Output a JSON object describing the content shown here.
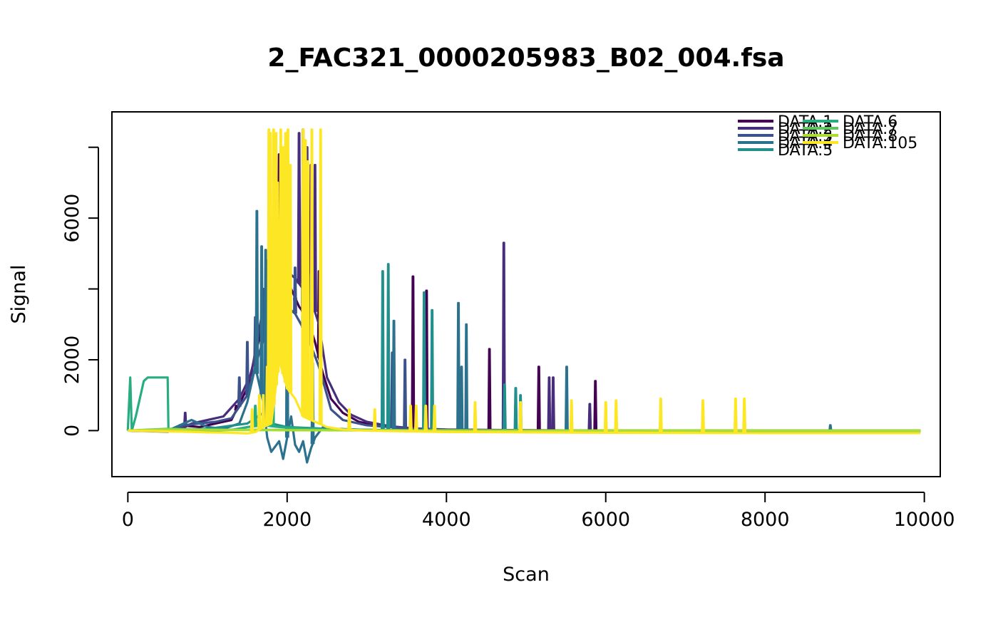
{
  "chart_data": {
    "type": "line",
    "title": "2_FAC321_0000205983_B02_004.fsa",
    "xlabel": "Scan",
    "ylabel": "Signal",
    "xlim": [
      -200,
      10200
    ],
    "ylim": [
      -1300,
      9000
    ],
    "x_ticks": [
      0,
      2000,
      4000,
      6000,
      8000,
      10000
    ],
    "x_tick_labels": [
      "0",
      "2000",
      "4000",
      "6000",
      "8000",
      "10000"
    ],
    "y_ticks": [
      0,
      2000,
      4000,
      6000,
      8000
    ],
    "y_tick_labels": [
      "0",
      "2000",
      "",
      "6000",
      ""
    ],
    "legend_position": "top-right",
    "grid": false,
    "series": [
      {
        "name": "DATA.1",
        "color": "#440154",
        "peaks": [
          [
            1360,
            700
          ],
          [
            1780,
            4000
          ],
          [
            1900,
            7800
          ],
          [
            2000,
            6000
          ],
          [
            2100,
            3500
          ],
          [
            2200,
            8500
          ],
          [
            2300,
            7500
          ],
          [
            2400,
            4500
          ],
          [
            3580,
            4350
          ],
          [
            3750,
            3950
          ],
          [
            4540,
            2300
          ],
          [
            5160,
            1800
          ],
          [
            5870,
            1400
          ]
        ],
        "points": [
          [
            0,
            0
          ],
          [
            550,
            -20
          ],
          [
            650,
            150
          ],
          [
            900,
            100
          ],
          [
            1100,
            200
          ],
          [
            1300,
            300
          ],
          [
            1500,
            1200
          ],
          [
            1650,
            2600
          ],
          [
            1750,
            3800
          ],
          [
            1850,
            4200
          ],
          [
            1950,
            4400
          ],
          [
            2050,
            4000
          ],
          [
            2150,
            3500
          ],
          [
            2250,
            3200
          ],
          [
            2350,
            2500
          ],
          [
            2450,
            1600
          ],
          [
            2550,
            900
          ],
          [
            2700,
            500
          ],
          [
            2900,
            250
          ],
          [
            3100,
            150
          ],
          [
            3400,
            80
          ],
          [
            3700,
            40
          ],
          [
            4000,
            20
          ],
          [
            5000,
            10
          ],
          [
            6000,
            0
          ],
          [
            9950,
            0
          ]
        ]
      },
      {
        "name": "DATA.2",
        "color": "#472D7B",
        "peaks": [
          [
            720,
            500
          ],
          [
            1550,
            1600
          ],
          [
            1750,
            4800
          ],
          [
            1850,
            7800
          ],
          [
            2150,
            8400
          ],
          [
            2250,
            8000
          ],
          [
            2350,
            7500
          ],
          [
            4720,
            5300
          ],
          [
            5290,
            1500
          ],
          [
            5340,
            1500
          ],
          [
            5800,
            750
          ]
        ],
        "points": [
          [
            0,
            0
          ],
          [
            500,
            -30
          ],
          [
            720,
            100
          ],
          [
            800,
            200
          ],
          [
            1000,
            300
          ],
          [
            1200,
            400
          ],
          [
            1400,
            900
          ],
          [
            1550,
            1600
          ],
          [
            1700,
            3500
          ],
          [
            1800,
            4600
          ],
          [
            1900,
            4700
          ],
          [
            2000,
            4500
          ],
          [
            2100,
            4300
          ],
          [
            2200,
            4000
          ],
          [
            2300,
            3700
          ],
          [
            2400,
            3000
          ],
          [
            2500,
            1500
          ],
          [
            2650,
            800
          ],
          [
            2800,
            450
          ],
          [
            3000,
            250
          ],
          [
            3300,
            120
          ],
          [
            3600,
            60
          ],
          [
            4000,
            30
          ],
          [
            5000,
            10
          ],
          [
            6000,
            0
          ],
          [
            9950,
            0
          ]
        ]
      },
      {
        "name": "DATA.3",
        "color": "#3B528B",
        "peaks": [
          [
            1400,
            1500
          ],
          [
            1500,
            2500
          ],
          [
            1600,
            3200
          ],
          [
            1700,
            4000
          ],
          [
            1800,
            4800
          ],
          [
            1900,
            5000
          ],
          [
            2000,
            4800
          ],
          [
            2100,
            4600
          ],
          [
            2200,
            4200
          ],
          [
            2300,
            4400
          ],
          [
            3320,
            2200
          ],
          [
            3480,
            2000
          ]
        ],
        "points": [
          [
            0,
            0
          ],
          [
            500,
            -10
          ],
          [
            700,
            150
          ],
          [
            900,
            200
          ],
          [
            1100,
            250
          ],
          [
            1300,
            350
          ],
          [
            1500,
            1000
          ],
          [
            1650,
            2200
          ],
          [
            1800,
            3200
          ],
          [
            1950,
            3600
          ],
          [
            2100,
            3300
          ],
          [
            2250,
            2700
          ],
          [
            2400,
            1800
          ],
          [
            2550,
            600
          ],
          [
            2700,
            300
          ],
          [
            3000,
            150
          ],
          [
            3500,
            60
          ],
          [
            4000,
            20
          ],
          [
            5000,
            5
          ],
          [
            6000,
            -20
          ],
          [
            9950,
            -20
          ]
        ]
      },
      {
        "name": "DATA.4",
        "color": "#2C728E",
        "peaks": [
          [
            1620,
            6200
          ],
          [
            1680,
            5200
          ],
          [
            1730,
            5100
          ],
          [
            2000,
            4500
          ],
          [
            2320,
            1900
          ],
          [
            3340,
            3100
          ],
          [
            4150,
            3600
          ],
          [
            4190,
            1800
          ],
          [
            4250,
            3000
          ],
          [
            5510,
            1800
          ],
          [
            8820,
            150
          ]
        ],
        "points": [
          [
            0,
            0
          ],
          [
            500,
            0
          ],
          [
            800,
            300
          ],
          [
            1000,
            100
          ],
          [
            1200,
            50
          ],
          [
            1400,
            200
          ],
          [
            1500,
            800
          ],
          [
            1600,
            1800
          ],
          [
            1700,
            800
          ],
          [
            1750,
            -200
          ],
          [
            1800,
            -600
          ],
          [
            1900,
            -300
          ],
          [
            1950,
            -800
          ],
          [
            2000,
            -200
          ],
          [
            2050,
            400
          ],
          [
            2100,
            -400
          ],
          [
            2150,
            -600
          ],
          [
            2200,
            -300
          ],
          [
            2250,
            -900
          ],
          [
            2300,
            -500
          ],
          [
            2350,
            -200
          ],
          [
            2450,
            100
          ],
          [
            2600,
            50
          ],
          [
            3000,
            20
          ],
          [
            4000,
            -30
          ],
          [
            6000,
            -30
          ],
          [
            8800,
            -40
          ],
          [
            9950,
            -40
          ]
        ]
      },
      {
        "name": "DATA.5",
        "color": "#21908C",
        "peaks": [
          [
            3200,
            4500
          ],
          [
            3270,
            4700
          ],
          [
            3720,
            3900
          ],
          [
            3820,
            3400
          ],
          [
            4730,
            1300
          ],
          [
            4870,
            1200
          ],
          [
            4930,
            1000
          ]
        ],
        "points": [
          [
            0,
            0
          ],
          [
            500,
            0
          ],
          [
            1000,
            50
          ],
          [
            1500,
            200
          ],
          [
            1700,
            500
          ],
          [
            1800,
            200
          ],
          [
            2000,
            100
          ],
          [
            2500,
            50
          ],
          [
            3000,
            20
          ],
          [
            4000,
            -10
          ],
          [
            6000,
            -40
          ],
          [
            8000,
            -50
          ],
          [
            9950,
            -50
          ]
        ]
      },
      {
        "name": "DATA.6",
        "color": "#27AD81",
        "peaks": [
          [
            1600,
            700
          ],
          [
            1790,
            5800
          ],
          [
            1820,
            5400
          ]
        ],
        "points": [
          [
            0,
            0
          ],
          [
            30,
            1500
          ],
          [
            50,
            0
          ],
          [
            100,
            400
          ],
          [
            200,
            1400
          ],
          [
            250,
            1500
          ],
          [
            500,
            1500
          ],
          [
            510,
            0
          ],
          [
            700,
            0
          ],
          [
            1000,
            0
          ],
          [
            1300,
            20
          ],
          [
            1500,
            100
          ],
          [
            1700,
            150
          ],
          [
            1900,
            100
          ],
          [
            2200,
            60
          ],
          [
            2600,
            30
          ],
          [
            3500,
            10
          ],
          [
            5000,
            0
          ],
          [
            9950,
            0
          ]
        ]
      },
      {
        "name": "DATA.7",
        "color": "#5DC863",
        "peaks": [],
        "points": [
          [
            0,
            0
          ],
          [
            500,
            50
          ],
          [
            1000,
            30
          ],
          [
            2000,
            20
          ],
          [
            3000,
            10
          ],
          [
            5000,
            0
          ],
          [
            9950,
            0
          ]
        ]
      },
      {
        "name": "DATA.8",
        "color": "#AADC32",
        "peaks": [],
        "points": [
          [
            0,
            0
          ],
          [
            500,
            30
          ],
          [
            1000,
            20
          ],
          [
            2000,
            10
          ],
          [
            5000,
            0
          ],
          [
            9950,
            0
          ]
        ]
      },
      {
        "name": "DATA.105",
        "color": "#FDE725",
        "peaks": [
          [
            1560,
            600
          ],
          [
            1650,
            1000
          ],
          [
            1700,
            1000
          ],
          [
            1750,
            1800
          ],
          [
            1770,
            8500
          ],
          [
            1790,
            8400
          ],
          [
            1830,
            8500
          ],
          [
            1860,
            8400
          ],
          [
            1880,
            7000
          ],
          [
            1920,
            8500
          ],
          [
            1950,
            8000
          ],
          [
            1980,
            8400
          ],
          [
            2010,
            8500
          ],
          [
            2040,
            7500
          ],
          [
            2200,
            8500
          ],
          [
            2230,
            8200
          ],
          [
            2260,
            7600
          ],
          [
            2310,
            8500
          ],
          [
            2420,
            8500
          ],
          [
            2780,
            600
          ],
          [
            3100,
            600
          ],
          [
            3550,
            700
          ],
          [
            3620,
            700
          ],
          [
            3740,
            700
          ],
          [
            3850,
            700
          ],
          [
            4360,
            800
          ],
          [
            4930,
            800
          ],
          [
            5570,
            850
          ],
          [
            6000,
            800
          ],
          [
            6130,
            850
          ],
          [
            6690,
            900
          ],
          [
            7220,
            850
          ],
          [
            7630,
            900
          ],
          [
            7740,
            900
          ]
        ],
        "points": [
          [
            0,
            0
          ],
          [
            700,
            -30
          ],
          [
            1000,
            -50
          ],
          [
            1300,
            -60
          ],
          [
            1500,
            -80
          ],
          [
            1600,
            -40
          ],
          [
            1700,
            100
          ],
          [
            1800,
            200
          ],
          [
            1900,
            2000
          ],
          [
            2000,
            1200
          ],
          [
            2100,
            900
          ],
          [
            2200,
            400
          ],
          [
            2300,
            300
          ],
          [
            2400,
            200
          ],
          [
            2500,
            100
          ],
          [
            2700,
            30
          ],
          [
            3000,
            0
          ],
          [
            4000,
            -40
          ],
          [
            6000,
            -60
          ],
          [
            8000,
            -70
          ],
          [
            9950,
            -70
          ]
        ]
      }
    ]
  }
}
